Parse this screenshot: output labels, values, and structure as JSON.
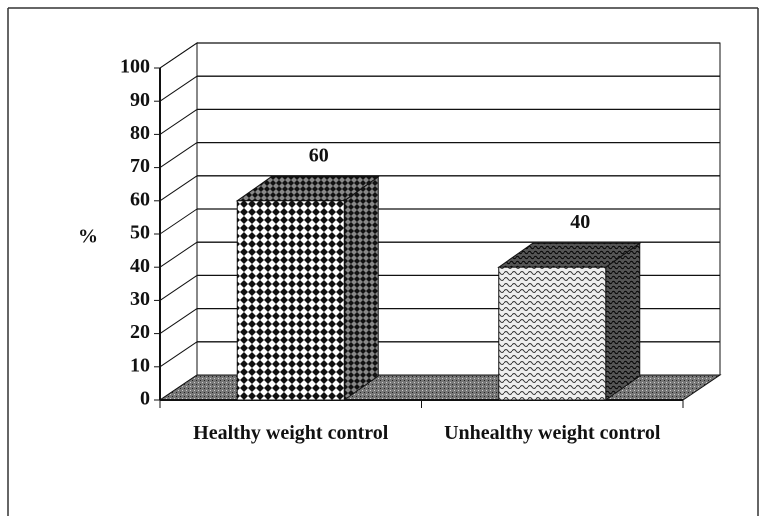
{
  "chart_data": {
    "type": "bar3d",
    "y_label": "%",
    "categories": [
      "Healthy weight control",
      "Unhealthy weight control"
    ],
    "values": [
      60,
      40
    ],
    "ylim": [
      0,
      100
    ],
    "yticks": [
      0,
      10,
      20,
      30,
      40,
      50,
      60,
      70,
      80,
      90,
      100
    ],
    "grid": true
  }
}
